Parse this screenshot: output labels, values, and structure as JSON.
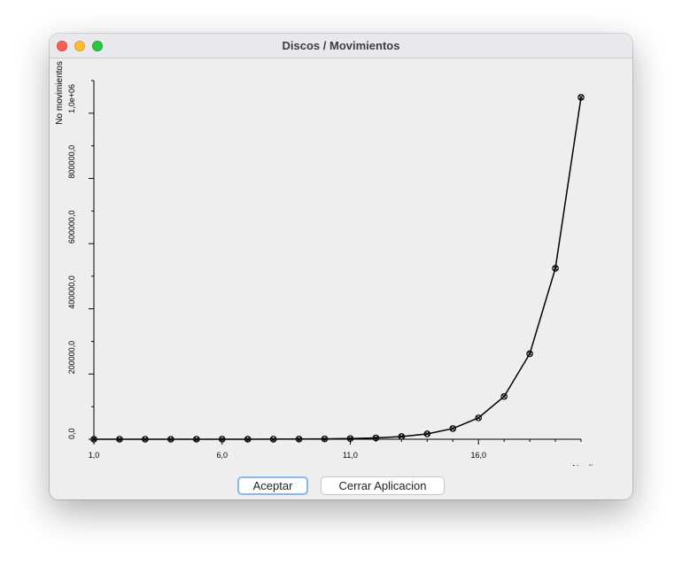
{
  "window": {
    "title": "Discos / Movimientos"
  },
  "buttons": {
    "accept": "Aceptar",
    "close_app": "Cerrar Aplicacion"
  },
  "chart_data": {
    "type": "line",
    "xlabel": "No discos",
    "ylabel": "No movimientos",
    "xlim": [
      1,
      20
    ],
    "ylim": [
      0,
      1100000
    ],
    "x_tick_labels": [
      {
        "value": 1,
        "label": "1,0"
      },
      {
        "value": 6,
        "label": "6,0"
      },
      {
        "value": 11,
        "label": "11,0"
      },
      {
        "value": 16,
        "label": "16,0"
      }
    ],
    "y_tick_labels": [
      {
        "value": 0,
        "label": "0,0"
      },
      {
        "value": 200000,
        "label": "200000,0"
      },
      {
        "value": 400000,
        "label": "400000,0"
      },
      {
        "value": 600000,
        "label": "600000,0"
      },
      {
        "value": 800000,
        "label": "800000,0"
      },
      {
        "value": 1000000,
        "label": "1,0e+06"
      }
    ],
    "series": [
      {
        "x": [
          1,
          2,
          3,
          4,
          5,
          6,
          7,
          8,
          9,
          10,
          11,
          12,
          13,
          14,
          15,
          16,
          17,
          18,
          19,
          20
        ],
        "values": [
          1,
          3,
          7,
          15,
          31,
          63,
          127,
          255,
          511,
          1023,
          2047,
          4095,
          8191,
          16383,
          32767,
          65535,
          131071,
          262143,
          524287,
          1048575
        ]
      }
    ],
    "grid": false,
    "marker": "circled-x",
    "color": "#000000"
  }
}
